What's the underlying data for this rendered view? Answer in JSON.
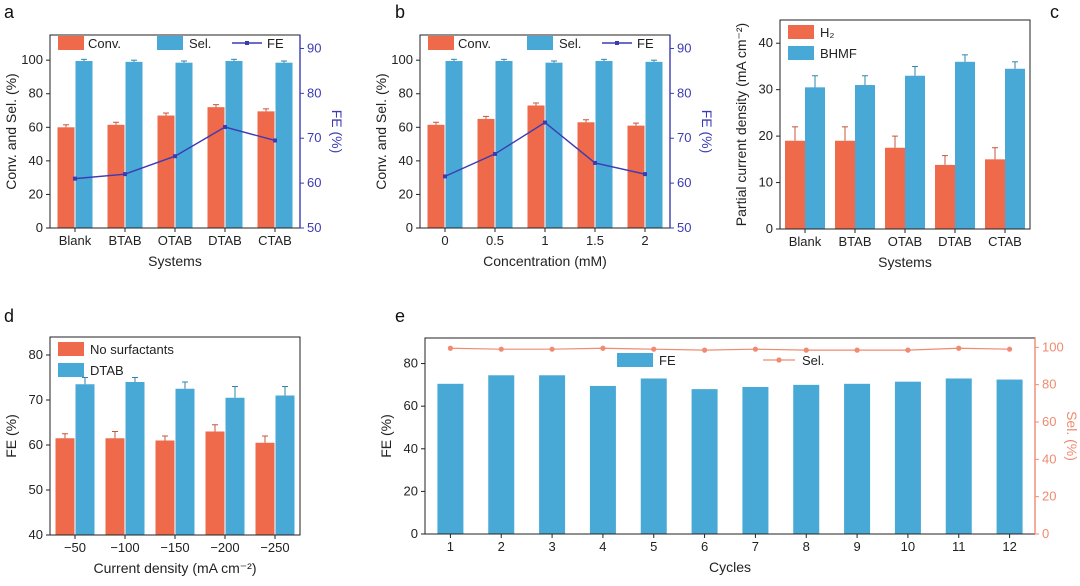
{
  "colors": {
    "orange": "#EE6A4A",
    "blue": "#48A9D6",
    "purple": "#3B3BB3",
    "sel": "#F08A70"
  },
  "chart_data": [
    {
      "panel": "a",
      "type": "bar",
      "categories": [
        "Blank",
        "BTAB",
        "OTAB",
        "DTAB",
        "CTAB"
      ],
      "series": [
        {
          "name": "Conv.",
          "values": [
            60,
            61.5,
            67,
            72,
            69.5
          ],
          "errors": [
            1.5,
            1.5,
            1.5,
            1.5,
            1.5
          ],
          "color": "orange"
        },
        {
          "name": "Sel.",
          "values": [
            99.5,
            99,
            98.5,
            99.5,
            98.5
          ],
          "errors": [
            1,
            1,
            1,
            1,
            1
          ],
          "color": "blue"
        }
      ],
      "line": {
        "name": "FE",
        "values": [
          61,
          62,
          66,
          72.5,
          69.5
        ],
        "axis": "right",
        "color": "purple"
      },
      "xlabel": "Systems",
      "ylabel": "Conv. and Sel. (%)",
      "y2label": "FE (%)",
      "ylim": [
        0,
        115
      ],
      "yticks": [
        0,
        20,
        40,
        60,
        80,
        100
      ],
      "y2lim": [
        50,
        93
      ],
      "y2ticks": [
        50,
        60,
        70,
        80,
        90
      ]
    },
    {
      "panel": "b",
      "type": "bar",
      "categories": [
        "0",
        "0.5",
        "1",
        "1.5",
        "2"
      ],
      "series": [
        {
          "name": "Conv.",
          "values": [
            61.5,
            65,
            73,
            63,
            61
          ],
          "errors": [
            1.5,
            1.5,
            1.5,
            1.5,
            1.5
          ],
          "color": "orange"
        },
        {
          "name": "Sel.",
          "values": [
            99.5,
            99.5,
            98.5,
            99.5,
            99
          ],
          "errors": [
            1,
            1,
            1,
            1,
            1
          ],
          "color": "blue"
        }
      ],
      "line": {
        "name": "FE",
        "values": [
          61.5,
          66.5,
          73.5,
          64.5,
          62
        ],
        "axis": "right",
        "color": "purple"
      },
      "xlabel": "Concentration (mM)",
      "ylabel": "Conv. and Sel. (%)",
      "y2label": "FE (%)",
      "ylim": [
        0,
        115
      ],
      "yticks": [
        0,
        20,
        40,
        60,
        80,
        100
      ],
      "y2lim": [
        50,
        93
      ],
      "y2ticks": [
        50,
        60,
        70,
        80,
        90
      ]
    },
    {
      "panel": "c",
      "type": "bar",
      "categories": [
        "Blank",
        "BTAB",
        "OTAB",
        "DTAB",
        "CTAB"
      ],
      "series": [
        {
          "name": "H₂",
          "values": [
            19,
            19,
            17.5,
            13.8,
            15
          ],
          "errors": [
            3,
            3,
            2.5,
            2,
            2.5
          ],
          "color": "orange"
        },
        {
          "name": "BHMF",
          "values": [
            30.5,
            31,
            33,
            36,
            34.5
          ],
          "errors": [
            2.5,
            2,
            2,
            1.5,
            1.5
          ],
          "color": "blue"
        }
      ],
      "xlabel": "Systems",
      "ylabel": "Partial current density (mA cm⁻²)",
      "ylim": [
        0,
        45
      ],
      "yticks": [
        0,
        10,
        20,
        30,
        40
      ]
    },
    {
      "panel": "d",
      "type": "bar",
      "categories": [
        "−50",
        "−100",
        "−150",
        "−200",
        "−250"
      ],
      "series": [
        {
          "name": "No surfactants",
          "values": [
            61.5,
            61.5,
            61,
            63,
            60.5
          ],
          "errors": [
            1,
            1.5,
            1,
            1.5,
            1.5
          ],
          "color": "orange"
        },
        {
          "name": "DTAB",
          "values": [
            73.5,
            74,
            72.5,
            70.5,
            71
          ],
          "errors": [
            1.5,
            1,
            1.5,
            2.5,
            2
          ],
          "color": "blue"
        }
      ],
      "xlabel": "Current density (mA cm⁻²)",
      "ylabel": "FE (%)",
      "ylim": [
        40,
        84
      ],
      "yticks": [
        40,
        50,
        60,
        70,
        80
      ]
    },
    {
      "panel": "e",
      "type": "bar",
      "categories": [
        "1",
        "2",
        "3",
        "4",
        "5",
        "6",
        "7",
        "8",
        "9",
        "10",
        "11",
        "12"
      ],
      "series": [
        {
          "name": "FE",
          "values": [
            70.5,
            74.5,
            74.5,
            69.5,
            73,
            68,
            69,
            70,
            70.5,
            71.5,
            73,
            72.5
          ],
          "color": "blue"
        }
      ],
      "line": {
        "name": "Sel.",
        "values": [
          99.5,
          99,
          99,
          99.5,
          99,
          98.5,
          99,
          98.5,
          98.5,
          98.5,
          99.5,
          99
        ],
        "axis": "right",
        "color": "sel"
      },
      "xlabel": "Cycles",
      "ylabel": "FE (%)",
      "y2label": "Sel. (%)",
      "ylim": [
        0,
        92
      ],
      "yticks": [
        0,
        20,
        40,
        60,
        80
      ],
      "y2lim": [
        0,
        105
      ],
      "y2ticks": [
        0,
        20,
        40,
        60,
        80,
        100
      ]
    }
  ]
}
